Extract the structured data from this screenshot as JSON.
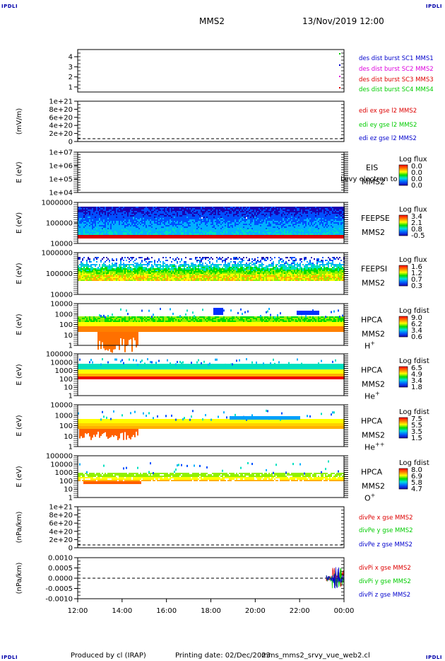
{
  "corners": {
    "tl": "IPDLI",
    "tr": "IPDLI",
    "bl": "IPDLI",
    "br": "IPDLI"
  },
  "header": {
    "spacecraft": "MMS2",
    "datetime": "13/Nov/2019 12:00"
  },
  "footer": {
    "produced": "Produced by cl (IRAP)",
    "printing": "Printing date: 02/Dec/2023",
    "script": "mms_mms2_srvy_vue_web2.cl"
  },
  "colors": {
    "red": "#dd0000",
    "magenta": "#dd00dd",
    "blue": "#0000cc",
    "green": "#00cc00"
  },
  "chart_data": {
    "type": "heatmap",
    "x_range": [
      "12:00",
      "00:00"
    ],
    "x_ticks": [
      "12:00",
      "14:00",
      "16:00",
      "18:00",
      "20:00",
      "22:00",
      "00:00"
    ],
    "panels": [
      {
        "id": "p1",
        "ylabel": "",
        "yticks": [
          "4",
          "3",
          "2",
          "1"
        ],
        "legend": [
          "des dist burst SC1 MMS1",
          "des dist burst SC2 MMS2",
          "des dist burst SC3 MMS3",
          "des dist burst SC4 MMS4"
        ]
      },
      {
        "id": "p2",
        "ylabel": "(mV/m)",
        "yticks": [
          "1e+21",
          "8e+20",
          "6e+20",
          "4e+20",
          "2e+20",
          "0"
        ],
        "legend": [
          "edi ex gse l2 MMS2",
          "edi ey gse l2 MMS2",
          "edi ez gse l2 MMS2"
        ]
      },
      {
        "id": "p3",
        "ylabel": "E (eV)",
        "yticks": [
          "1e+07",
          "1e+06",
          "1e+05",
          "1e+04"
        ],
        "instrument": "EIS",
        "sc": "MMS2",
        "overlay": "Levy electron to",
        "cbar_title": "Log flux",
        "cbar": [
          "0.0",
          "0.0",
          "0.0",
          "0.0"
        ]
      },
      {
        "id": "p4",
        "ylabel": "E (eV)",
        "yticks": [
          "1000000",
          "100000",
          "10000"
        ],
        "instrument": "FEEPSE",
        "sc": "MMS2",
        "cbar_title": "Log flux",
        "cbar": [
          "3.4",
          "2.1",
          "0.8",
          "-0.5"
        ]
      },
      {
        "id": "p5",
        "ylabel": "E (eV)",
        "yticks": [
          "1000000",
          "100000",
          "10000"
        ],
        "instrument": "FEEPSI",
        "sc": "MMS2",
        "cbar_title": "Log flux",
        "cbar": [
          "1.6",
          "1.2",
          "0.7",
          "0.3"
        ]
      },
      {
        "id": "p6",
        "ylabel": "E (eV)",
        "yticks": [
          "10000",
          "1000",
          "100",
          "10",
          "1"
        ],
        "instrument": "HPCA",
        "sc": "MMS2",
        "species": "H",
        "sup": "+",
        "cbar_title": "Log fdist",
        "cbar": [
          "9.0",
          "6.2",
          "3.4",
          "0.6"
        ]
      },
      {
        "id": "p7",
        "ylabel": "E (eV)",
        "yticks": [
          "100000",
          "10000",
          "1000",
          "100",
          "10",
          "1"
        ],
        "instrument": "HPCA",
        "sc": "MMS2",
        "species": "He",
        "sup": "+",
        "cbar_title": "Log fdist",
        "cbar": [
          "6.5",
          "4.9",
          "3.4",
          "1.8"
        ]
      },
      {
        "id": "p8",
        "ylabel": "E (eV)",
        "yticks": [
          "10000",
          "1000",
          "100",
          "10",
          "1"
        ],
        "instrument": "HPCA",
        "sc": "MMS2",
        "species": "He",
        "sup": "++",
        "cbar_title": "Log fdist",
        "cbar": [
          "7.5",
          "5.5",
          "3.5",
          "1.5"
        ]
      },
      {
        "id": "p9",
        "ylabel": "E (eV)",
        "yticks": [
          "100000",
          "10000",
          "1000",
          "100",
          "10",
          "1"
        ],
        "instrument": "HPCA",
        "sc": "MMS2",
        "species": "O",
        "sup": "+",
        "cbar_title": "Log fdist",
        "cbar": [
          "8.0",
          "6.9",
          "5.8",
          "4.7"
        ]
      },
      {
        "id": "p10",
        "ylabel": "(nPa/km)",
        "yticks": [
          "1e+21",
          "8e+20",
          "6e+20",
          "4e+20",
          "2e+20",
          "0"
        ],
        "legend": [
          "divPe x gse MMS2",
          "divPe y gse MMS2",
          "divPe z gse MMS2"
        ]
      },
      {
        "id": "p11",
        "ylabel": "(nPa/km)",
        "yticks": [
          "0.0010",
          "0.0005",
          "0.0000",
          "-0.0005",
          "-0.0010"
        ],
        "legend": [
          "divPi x gse MMS2",
          "divPi y gse MMS2",
          "divPi z gse MMS2"
        ]
      }
    ]
  }
}
